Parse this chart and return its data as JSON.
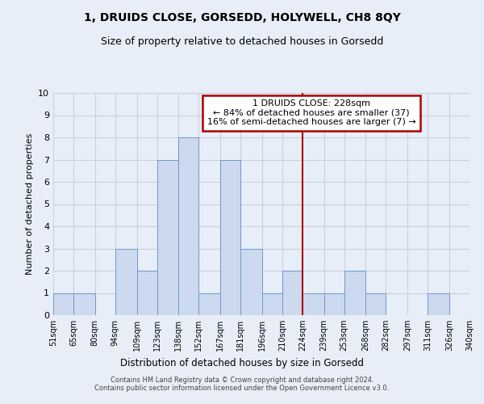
{
  "title": "1, DRUIDS CLOSE, GORSEDD, HOLYWELL, CH8 8QY",
  "subtitle": "Size of property relative to detached houses in Gorsedd",
  "xlabel": "Distribution of detached houses by size in Gorsedd",
  "ylabel": "Number of detached properties",
  "bin_edges": [
    51,
    65,
    80,
    94,
    109,
    123,
    138,
    152,
    167,
    181,
    196,
    210,
    224,
    239,
    253,
    268,
    282,
    297,
    311,
    326,
    340
  ],
  "bar_heights": [
    1,
    1,
    0,
    3,
    2,
    7,
    8,
    1,
    7,
    3,
    1,
    2,
    1,
    1,
    2,
    1,
    0,
    0,
    1,
    0
  ],
  "bar_color": "#ccd9ef",
  "bar_edgecolor": "#7099cc",
  "grid_color": "#c8d0dc",
  "vline_x": 224,
  "vline_color": "#aa0000",
  "annotation_title": "1 DRUIDS CLOSE: 228sqm",
  "annotation_line1": "← 84% of detached houses are smaller (37)",
  "annotation_line2": "16% of semi-detached houses are larger (7) →",
  "annotation_box_color": "#ffffff",
  "annotation_box_edgecolor": "#aa0000",
  "ylim": [
    0,
    10
  ],
  "yticks": [
    0,
    1,
    2,
    3,
    4,
    5,
    6,
    7,
    8,
    9,
    10
  ],
  "tick_labels": [
    "51sqm",
    "65sqm",
    "80sqm",
    "94sqm",
    "109sqm",
    "123sqm",
    "138sqm",
    "152sqm",
    "167sqm",
    "181sqm",
    "196sqm",
    "210sqm",
    "224sqm",
    "239sqm",
    "253sqm",
    "268sqm",
    "282sqm",
    "297sqm",
    "311sqm",
    "326sqm",
    "340sqm"
  ],
  "footer_line1": "Contains HM Land Registry data © Crown copyright and database right 2024.",
  "footer_line2": "Contains public sector information licensed under the Open Government Licence v3.0.",
  "bg_color": "#e8eef8"
}
